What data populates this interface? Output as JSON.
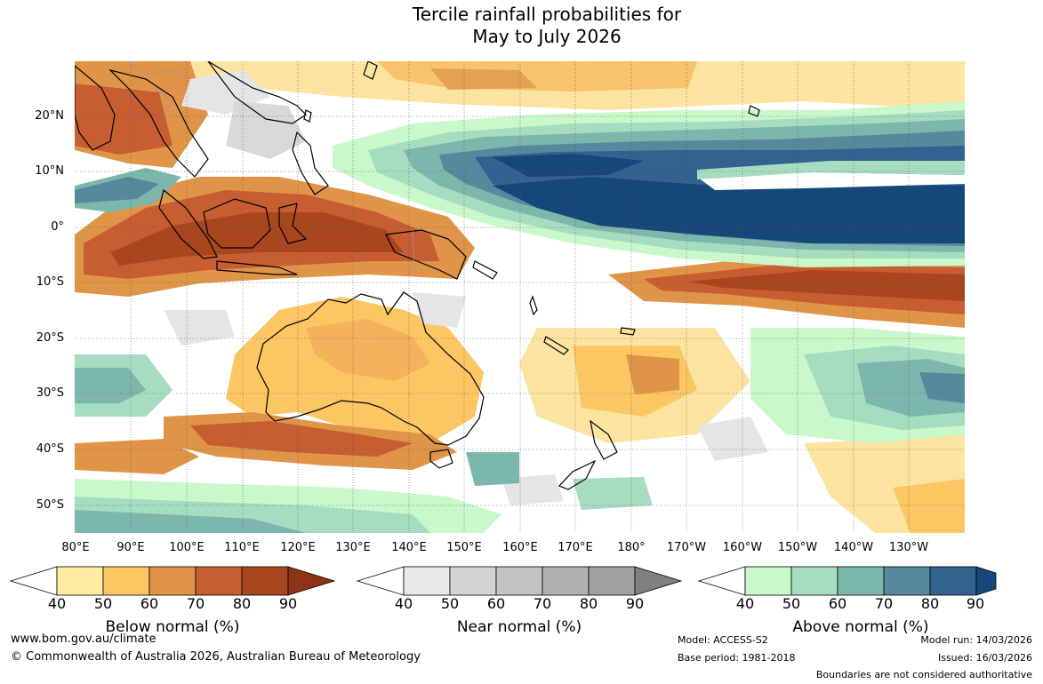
{
  "title_line1": "Tercile rainfall probabilities for",
  "title_line2": "May to July 2026",
  "lat_labels": [
    "20°N",
    "10°N",
    "0°",
    "10°S",
    "20°S",
    "30°S",
    "40°S",
    "50°S"
  ],
  "lon_labels": [
    "80°E",
    "90°E",
    "100°E",
    "110°E",
    "120°E",
    "130°E",
    "140°E",
    "150°E",
    "160°E",
    "170°E",
    "180°",
    "170°W",
    "160°W",
    "150°W",
    "140°W",
    "130°W"
  ],
  "colorbars": [
    {
      "title": "Below normal (%)",
      "ticks": [
        "40",
        "50",
        "60",
        "70",
        "80",
        "90"
      ],
      "colors": [
        "#ffffff",
        "#ffeaa0",
        "#fcc662",
        "#df9448",
        "#c65e32",
        "#a8461e",
        "#8c3414"
      ]
    },
    {
      "title": "Near normal (%)",
      "ticks": [
        "40",
        "50",
        "60",
        "70",
        "80",
        "90"
      ],
      "colors": [
        "#ffffff",
        "#e9e9e9",
        "#d4d4d4",
        "#c2c2c2",
        "#b0b0b0",
        "#a0a0a0",
        "#808080"
      ]
    },
    {
      "title": "Above normal (%)",
      "ticks": [
        "40",
        "50",
        "60",
        "70",
        "80",
        "90"
      ],
      "colors": [
        "#ffffff",
        "#c9f8cb",
        "#a6dcc0",
        "#7cb7ac",
        "#56899c",
        "#326290",
        "#154878"
      ]
    }
  ],
  "footer": {
    "url": "www.bom.gov.au/climate",
    "copyright": "© Commonwealth of Australia 2026, Australian Bureau of Meteorology",
    "model": "Model: ACCESS-S2",
    "base_period": "Base period: 1981-2018",
    "model_run": "Model run: 14/03/2026",
    "issued": "Issued: 16/03/2026",
    "boundaries_note": "Boundaries are not considered authoritative"
  }
}
